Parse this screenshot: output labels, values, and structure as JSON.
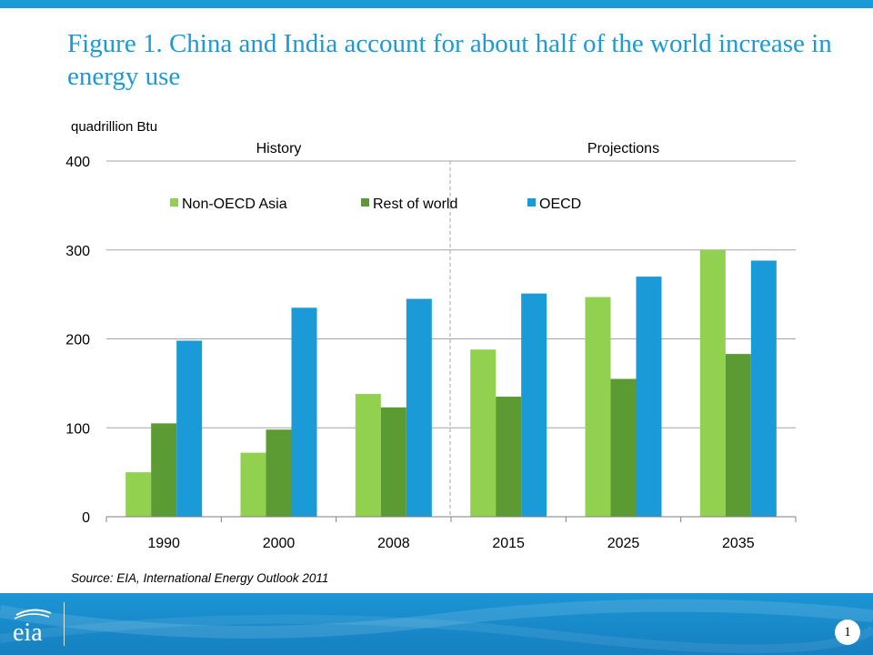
{
  "slide": {
    "title": "Figure 1. China and India account for about half of the world increase in energy use",
    "source": "Source:  EIA, International Energy Outlook 2011",
    "page_number": "1",
    "logo_text": "eia"
  },
  "colors": {
    "accent": "#1a9ad6",
    "non_oecd_asia": "#92d050",
    "rest_of_world": "#5c9b33",
    "oecd": "#1a9ad6"
  },
  "chart_data": {
    "type": "bar",
    "ylabel": "quadrillion Btu",
    "xlabel": "",
    "ylim": [
      0,
      400
    ],
    "yticks": [
      0,
      100,
      200,
      300,
      400
    ],
    "grid": true,
    "legend_position": "top",
    "categories": [
      "1990",
      "2000",
      "2008",
      "2015",
      "2025",
      "2035"
    ],
    "period_labels": [
      "History",
      "Projections"
    ],
    "history_categories": [
      "1990",
      "2000",
      "2008"
    ],
    "projection_categories": [
      "2015",
      "2025",
      "2035"
    ],
    "series": [
      {
        "name": "Non-OECD Asia",
        "color": "#92d050",
        "values": [
          50,
          72,
          138,
          188,
          247,
          300
        ]
      },
      {
        "name": "Rest of world",
        "color": "#5c9b33",
        "values": [
          105,
          98,
          123,
          135,
          155,
          183
        ]
      },
      {
        "name": "OECD",
        "color": "#1a9ad6",
        "values": [
          198,
          235,
          245,
          251,
          270,
          288
        ]
      }
    ]
  }
}
